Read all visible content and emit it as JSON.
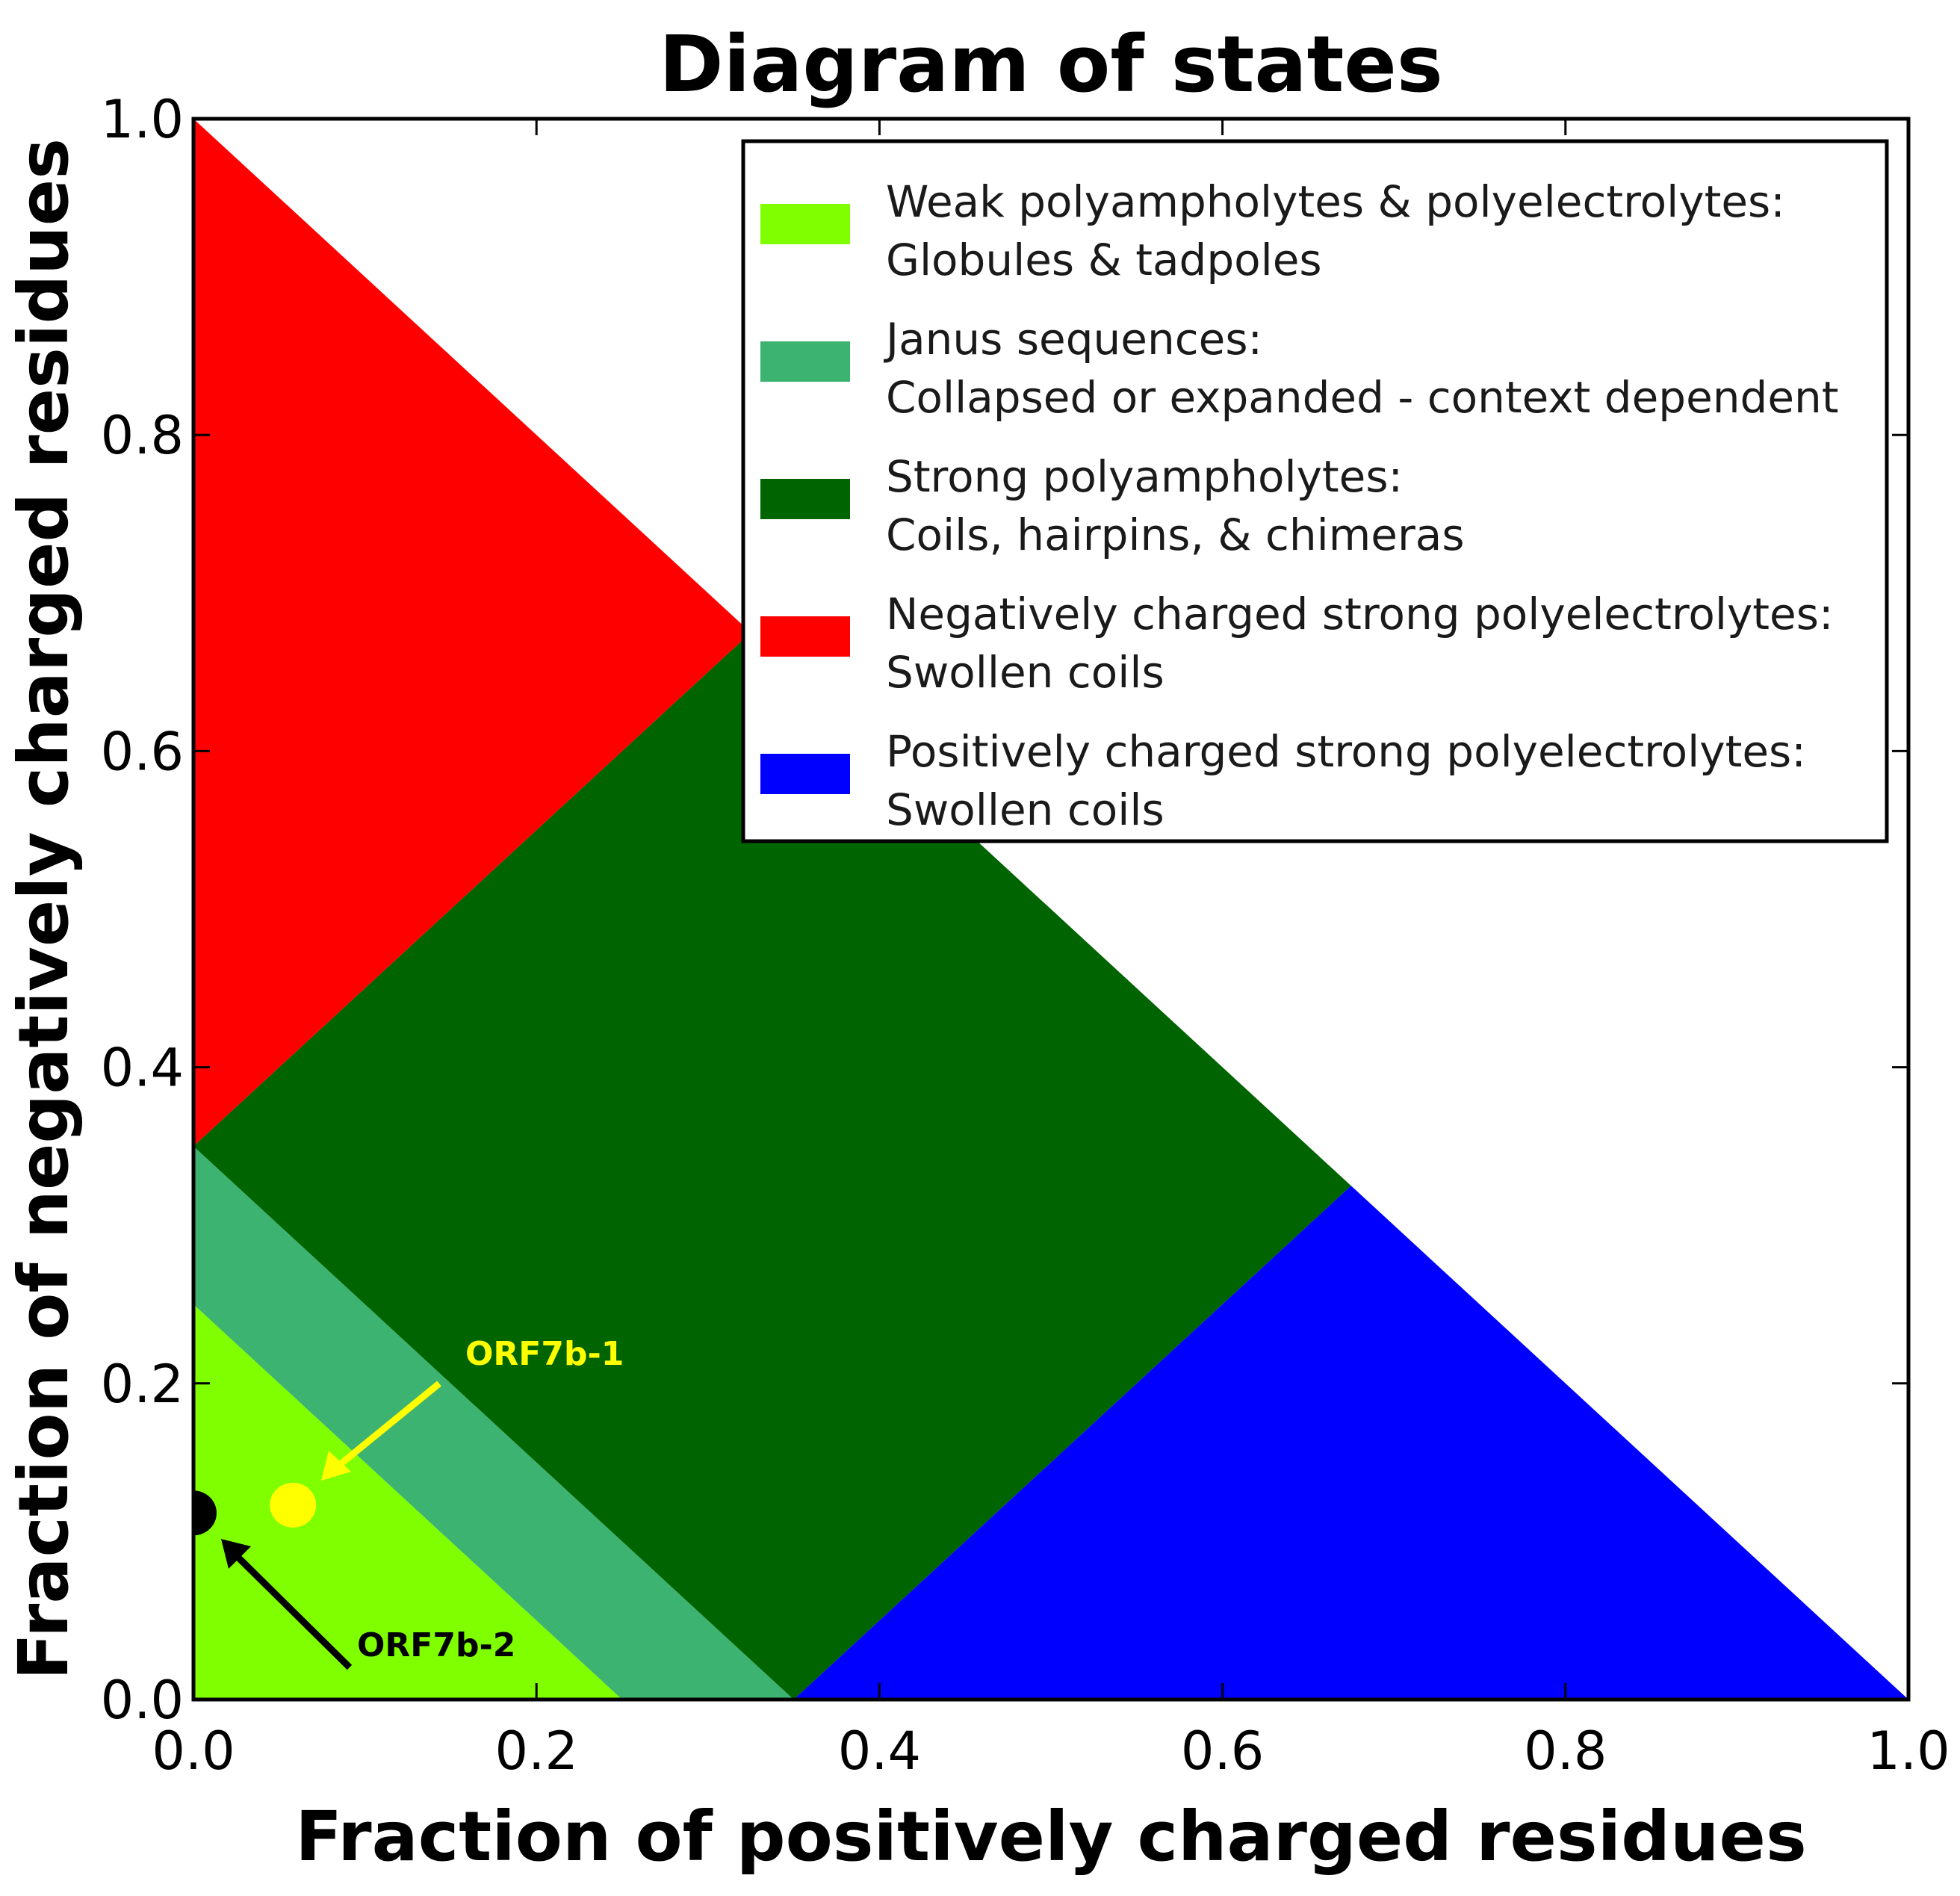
{
  "chart_data": {
    "type": "area",
    "title": "Diagram of states",
    "xlabel": "Fraction of positively charged residues",
    "ylabel": "Fraction of negatively charged residues",
    "xlim": [
      0.0,
      1.0
    ],
    "ylim": [
      0.0,
      1.0
    ],
    "xticks": [
      "0.0",
      "0.2",
      "0.4",
      "0.6",
      "0.8",
      "1.0"
    ],
    "yticks": [
      "0.0",
      "0.2",
      "0.4",
      "0.6",
      "0.8",
      "1.0"
    ],
    "grid": false,
    "legend_position": "upper right",
    "regions": [
      {
        "name": "Weak polyampholytes & polyelectrolytes: Globules & tadpoles",
        "line1": "Weak polyampholytes & polyelectrolytes:",
        "line2": "Globules & tadpoles",
        "color": "#7fff00",
        "polygon": [
          [
            0,
            0
          ],
          [
            0.25,
            0
          ],
          [
            0,
            0.25
          ]
        ]
      },
      {
        "name": "Janus sequences: Collapsed or expanded - context dependent",
        "line1": "Janus sequences:",
        "line2": "Collapsed or expanded - context dependent",
        "color": "#3cb371",
        "polygon": [
          [
            0.25,
            0
          ],
          [
            0.35,
            0
          ],
          [
            0,
            0.35
          ],
          [
            0,
            0.25
          ]
        ]
      },
      {
        "name": "Strong polyampholytes: Coils, hairpins, & chimeras",
        "line1": "Strong polyampholytes:",
        "line2": "Coils, hairpins, & chimeras",
        "color": "#006400",
        "polygon": [
          [
            0.35,
            0
          ],
          [
            0.675,
            0.325
          ],
          [
            0.325,
            0.675
          ],
          [
            0,
            0.35
          ]
        ]
      },
      {
        "name": "Negatively charged strong polyelectrolytes: Swollen coils",
        "line1": "Negatively charged strong polyelectrolytes:",
        "line2": "Swollen coils",
        "color": "#ff0000",
        "polygon": [
          [
            0,
            0.35
          ],
          [
            0.325,
            0.675
          ],
          [
            0,
            1
          ]
        ]
      },
      {
        "name": "Positively charged strong polyelectrolytes: Swollen coils",
        "line1": "Positively charged strong polyelectrolytes:",
        "line2": "Swollen coils",
        "color": "#0000ff",
        "polygon": [
          [
            0.35,
            0
          ],
          [
            1,
            0
          ],
          [
            0.675,
            0.325
          ]
        ]
      }
    ],
    "points": [
      {
        "label": "ORF7b-1",
        "x": 0.058,
        "y": 0.123,
        "color": "#ffff00",
        "label_color": "#ffff00"
      },
      {
        "label": "ORF7b-2",
        "x": 0.0,
        "y": 0.118,
        "color": "#000000",
        "label_color": "#000000"
      }
    ]
  }
}
